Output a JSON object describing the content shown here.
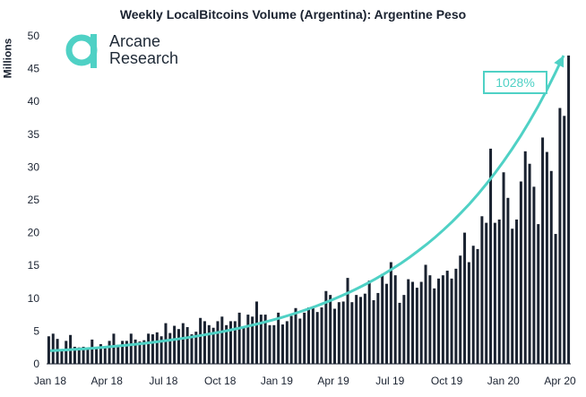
{
  "title": "Weekly LocalBitcoins Volume (Argentina): Argentine Peso",
  "logo": {
    "line1": "Arcane",
    "line2": "Research",
    "color": "#4fd1c5"
  },
  "annotation": {
    "label": "1028%",
    "color": "#4fd1c5"
  },
  "colors": {
    "bar": "#1a2230",
    "trend": "#4fd1c5"
  },
  "chart_data": {
    "type": "bar",
    "ylabel": "Millions",
    "ylim": [
      0,
      50
    ],
    "yticks": [
      0,
      5,
      10,
      15,
      20,
      25,
      30,
      35,
      40,
      45,
      50
    ],
    "xtick_labels": [
      "Jan 18",
      "Apr 18",
      "Jul 18",
      "Oct 18",
      "Jan 19",
      "Apr 19",
      "Jul 19",
      "Oct 19",
      "Jan 20",
      "Apr 20"
    ],
    "period": "weekly, Jan 2018 - Apr 2020",
    "values": [
      4.2,
      4.6,
      3.8,
      2.2,
      3.5,
      4.4,
      2.6,
      2.5,
      2.6,
      2.4,
      3.7,
      2.4,
      3.0,
      2.6,
      3.5,
      4.6,
      2.9,
      3.5,
      3.5,
      4.6,
      3.7,
      3.4,
      3.6,
      4.6,
      4.5,
      4.8,
      4.2,
      6.2,
      4.7,
      5.8,
      5.3,
      6.2,
      5.6,
      4.5,
      4.9,
      7.0,
      6.5,
      5.9,
      5.5,
      6.5,
      7.2,
      5.9,
      6.5,
      6.5,
      7.8,
      5.7,
      7.5,
      7.2,
      9.5,
      7.5,
      7.5,
      5.9,
      5.9,
      7.8,
      6.0,
      6.5,
      7.3,
      8.5,
      6.9,
      7.8,
      8.6,
      8.5,
      7.9,
      8.6,
      11.1,
      10.5,
      8.4,
      9.4,
      9.5,
      13.1,
      9.4,
      10.5,
      10.2,
      10.7,
      12.7,
      9.7,
      10.8,
      13.7,
      12.2,
      15.5,
      13.5,
      9.3,
      10.5,
      12.9,
      12.5,
      11.6,
      12.5,
      15.1,
      13.5,
      11.5,
      13.0,
      13.5,
      14.2,
      13.0,
      14.5,
      16.5,
      20.0,
      15.5,
      18.0,
      17.5,
      22.5,
      21.5,
      32.8,
      21.5,
      22.0,
      29.2,
      25.3,
      20.6,
      22.0,
      27.8,
      32.4,
      30.5,
      27.0,
      21.3,
      34.5,
      32.3,
      29.4,
      19.8,
      39.0,
      37.8,
      47.0
    ]
  }
}
